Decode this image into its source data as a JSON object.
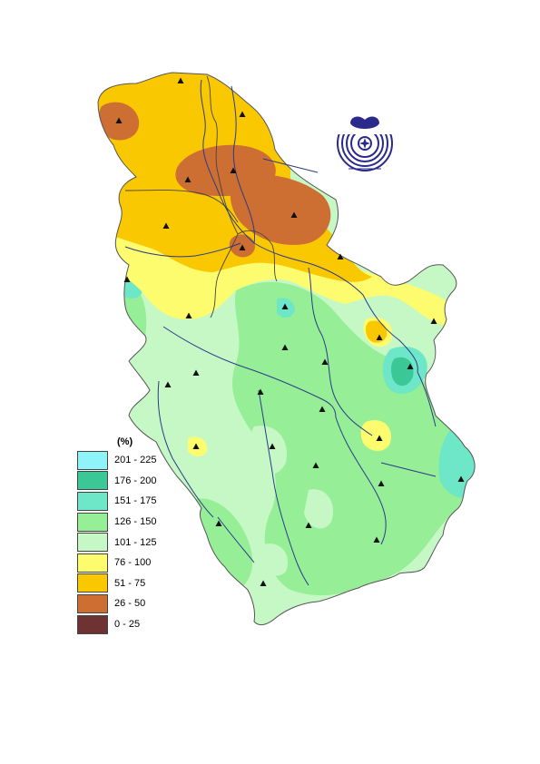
{
  "legend": {
    "title": "(%)",
    "items": [
      {
        "label": "201 - 225",
        "color": "#8ff4fa"
      },
      {
        "label": "176 - 200",
        "color": "#3cc896"
      },
      {
        "label": "151 - 175",
        "color": "#6ee6c8"
      },
      {
        "label": "126 - 150",
        "color": "#96ee96"
      },
      {
        "label": "101 - 125",
        "color": "#c6f8c6"
      },
      {
        "label": "76 - 100",
        "color": "#fcfc6e"
      },
      {
        "label": "51 - 75",
        "color": "#fac800"
      },
      {
        "label": "26 - 50",
        "color": "#cd6e32"
      },
      {
        "label": "0 - 25",
        "color": "#6e3232"
      }
    ]
  },
  "colors": {
    "river": "#2a3a8a",
    "border": "#555555",
    "logo": "#2a2a8c"
  },
  "icons": {
    "station": "triangle-station-icon",
    "logo": "hydromet-service-logo-icon"
  }
}
